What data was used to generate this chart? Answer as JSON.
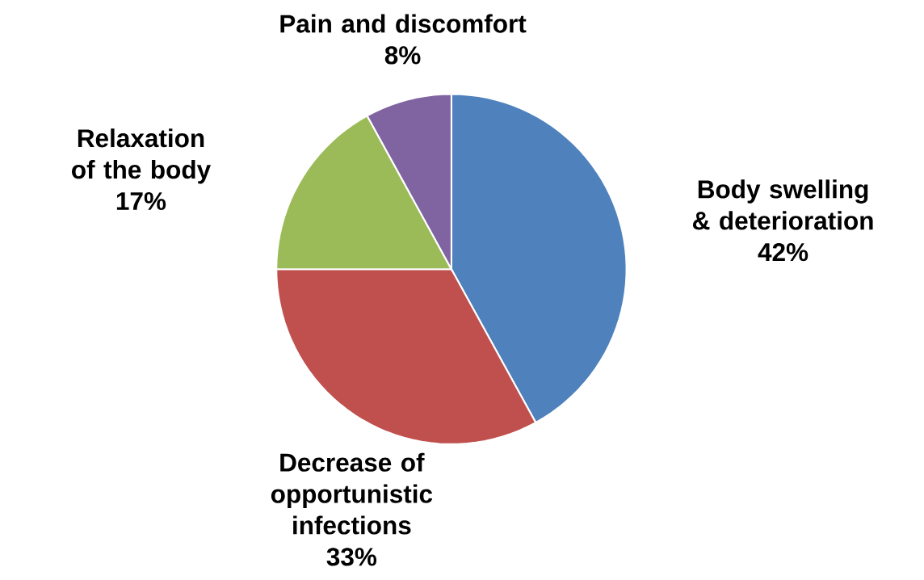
{
  "chart_data": {
    "type": "pie",
    "categories": [
      "Body swelling & deterioration",
      "Decrease of opportunistic infections",
      "Relaxation of the body",
      "Pain and discomfort"
    ],
    "values": [
      42,
      33,
      17,
      8
    ],
    "value_labels": [
      "42%",
      "33%",
      "17%",
      "8%"
    ],
    "colors": [
      "#4f81bd",
      "#c0504d",
      "#9bbb59",
      "#8064a2"
    ]
  }
}
